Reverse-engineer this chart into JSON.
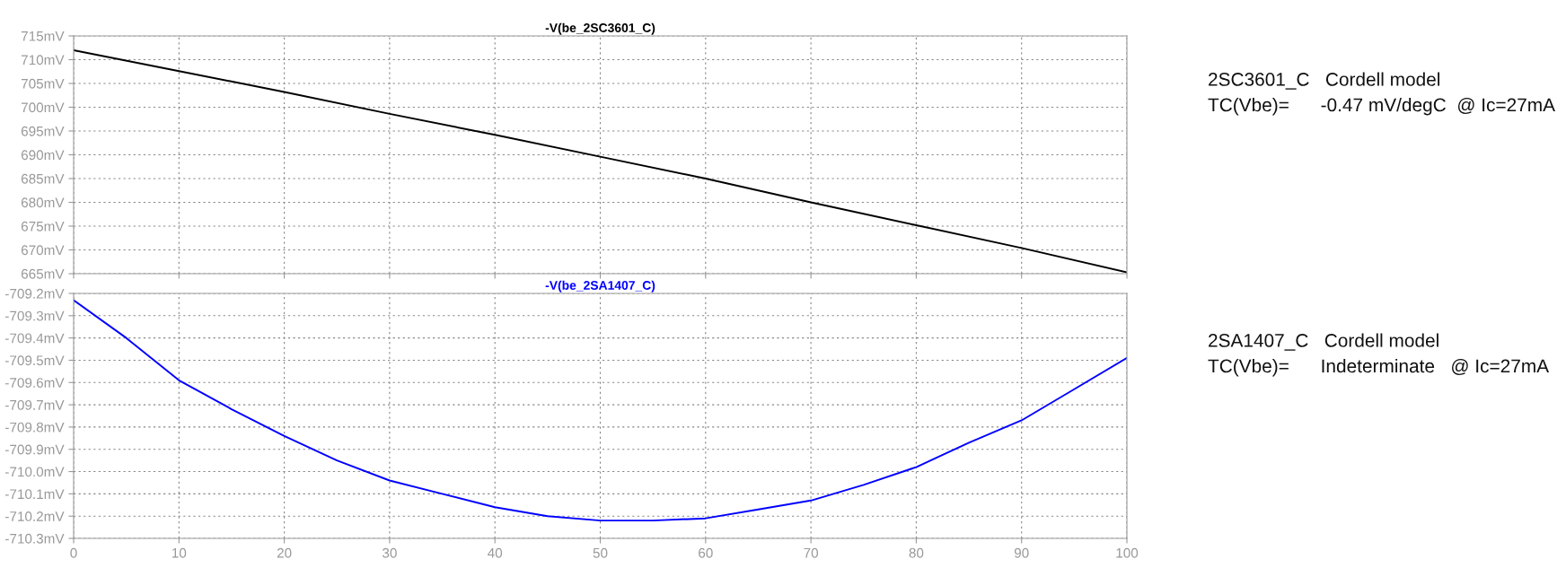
{
  "chart_data": [
    {
      "type": "line",
      "x": [
        0,
        10,
        20,
        30,
        40,
        50,
        60,
        70,
        80,
        90,
        100
      ],
      "series": [
        {
          "name": "-V(be_2SC3601_C)",
          "color": "#000000",
          "values": [
            712.0,
            707.6,
            703.2,
            698.6,
            694.2,
            689.6,
            685.0,
            680.0,
            675.2,
            670.4,
            665.3
          ]
        }
      ],
      "xlim": [
        0,
        100
      ],
      "xticks": [
        0,
        10,
        20,
        30,
        40,
        50,
        60,
        70,
        80,
        90,
        100
      ],
      "ylim": [
        665,
        715
      ],
      "yticks": [
        {
          "value": 665,
          "label": "665mV"
        },
        {
          "value": 670,
          "label": "670mV"
        },
        {
          "value": 675,
          "label": "675mV"
        },
        {
          "value": 680,
          "label": "680mV"
        },
        {
          "value": 685,
          "label": "685mV"
        },
        {
          "value": 690,
          "label": "690mV"
        },
        {
          "value": 695,
          "label": "695mV"
        },
        {
          "value": 700,
          "label": "700mV"
        },
        {
          "value": 705,
          "label": "705mV"
        },
        {
          "value": 710,
          "label": "710mV"
        },
        {
          "value": 715,
          "label": "715mV"
        }
      ],
      "tick_labels": "y",
      "grid": true,
      "legend": "top",
      "line_style": "solid",
      "annotations": [
        "2SC3601_C   Cordell model",
        "TC(Vbe)=      -0.47 mV/degC  @ Ic=27mA"
      ]
    },
    {
      "type": "line",
      "x": [
        0,
        5,
        10,
        15,
        20,
        25,
        30,
        35,
        40,
        45,
        50,
        55,
        60,
        65,
        70,
        75,
        80,
        85,
        90,
        95,
        100
      ],
      "series": [
        {
          "name": "-V(be_2SA1407_C)",
          "color": "#0000ff",
          "values": [
            -709.23,
            -709.4,
            -709.59,
            -709.72,
            -709.84,
            -709.95,
            -710.04,
            -710.1,
            -710.16,
            -710.2,
            -710.22,
            -710.22,
            -710.21,
            -710.17,
            -710.13,
            -710.06,
            -709.98,
            -709.87,
            -709.77,
            -709.63,
            -709.49
          ]
        }
      ],
      "xlim": [
        0,
        100
      ],
      "xticks": [
        0,
        10,
        20,
        30,
        40,
        50,
        60,
        70,
        80,
        90,
        100
      ],
      "ylim": [
        -710.3,
        -709.2
      ],
      "yticks": [
        {
          "value": -710.3,
          "label": "-710.3mV"
        },
        {
          "value": -710.2,
          "label": "-710.2mV"
        },
        {
          "value": -710.1,
          "label": "-710.1mV"
        },
        {
          "value": -710.0,
          "label": "-710.0mV"
        },
        {
          "value": -709.9,
          "label": "-709.9mV"
        },
        {
          "value": -709.8,
          "label": "-709.8mV"
        },
        {
          "value": -709.7,
          "label": "-709.7mV"
        },
        {
          "value": -709.6,
          "label": "-709.6mV"
        },
        {
          "value": -709.5,
          "label": "-709.5mV"
        },
        {
          "value": -709.4,
          "label": "-709.4mV"
        },
        {
          "value": -709.3,
          "label": "-709.3mV"
        },
        {
          "value": -709.2,
          "label": "-709.2mV"
        }
      ],
      "grid": true,
      "legend": "top",
      "line_style": "solid",
      "annotations": [
        "2SA1407_C   Cordell model",
        "TC(Vbe)=      Indeterminate   @ Ic=27mA"
      ]
    }
  ]
}
